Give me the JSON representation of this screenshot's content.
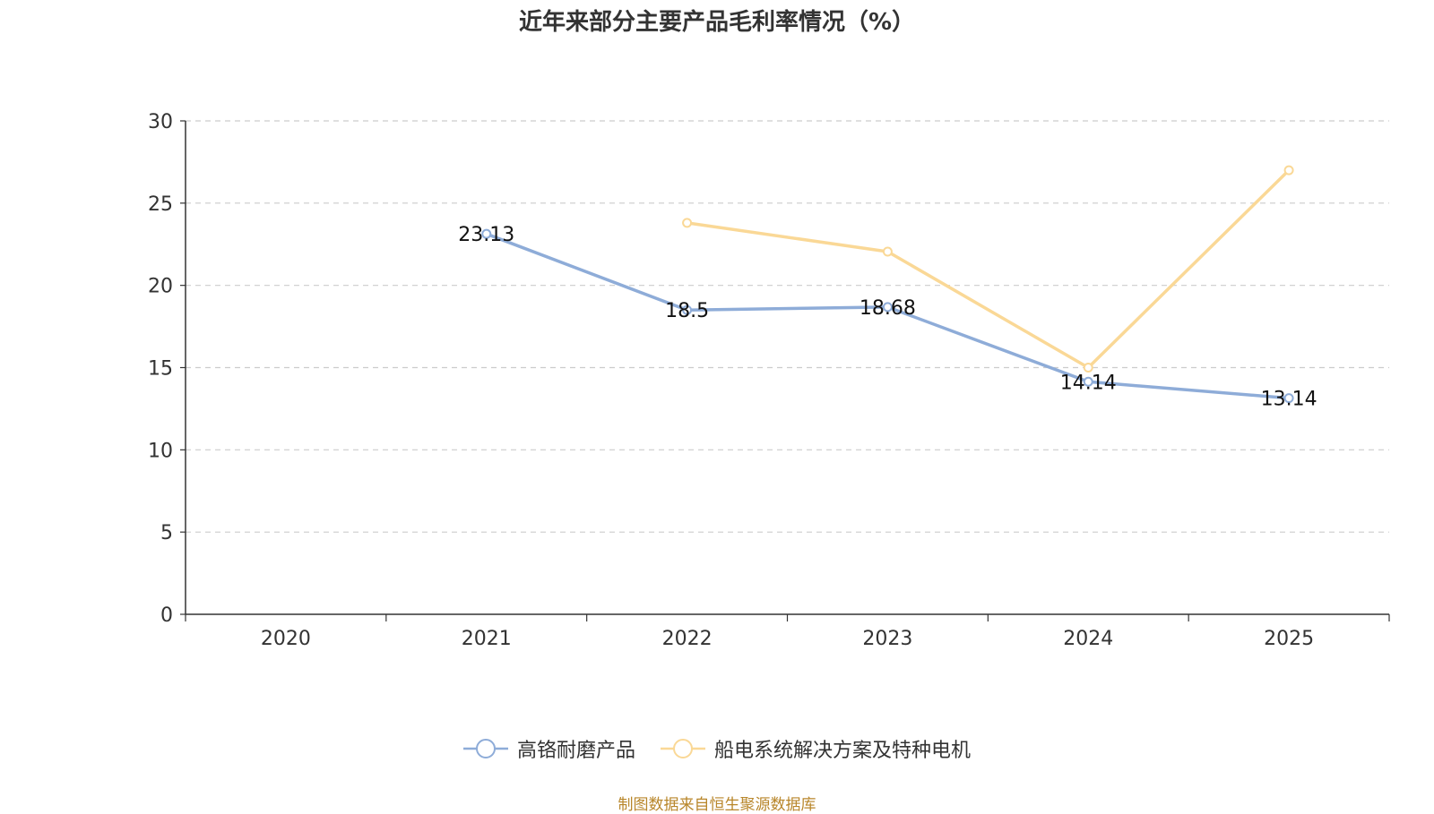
{
  "title": "近年来部分主要产品毛利率情况（%）",
  "source": "制图数据来自恒生聚源数据库",
  "colors": {
    "series1": "#8eacd8",
    "series2": "#fad896",
    "grid": "#cccccc",
    "axis": "#333333"
  },
  "chart_data": {
    "type": "line",
    "title": "近年来部分主要产品毛利率情况（%）",
    "categories": [
      "2020",
      "2021",
      "2022",
      "2023",
      "2024",
      "2025"
    ],
    "ylim": [
      0,
      30
    ],
    "yticks": [
      0,
      5,
      10,
      15,
      20,
      25,
      30
    ],
    "grid": true,
    "legend_position": "bottom",
    "series": [
      {
        "name": "高铬耐磨产品",
        "color": "#8eacd8",
        "values": [
          null,
          23.13,
          18.5,
          18.68,
          14.14,
          13.14
        ],
        "labels": [
          null,
          "23.13",
          "18.5",
          "18.68",
          "14.14",
          "13.14"
        ]
      },
      {
        "name": "船电系统解决方案及特种电机",
        "color": "#fad896",
        "values": [
          null,
          null,
          23.8,
          22.05,
          15.0,
          27.0
        ],
        "labels": [
          null,
          null,
          null,
          null,
          null,
          null
        ]
      }
    ]
  }
}
